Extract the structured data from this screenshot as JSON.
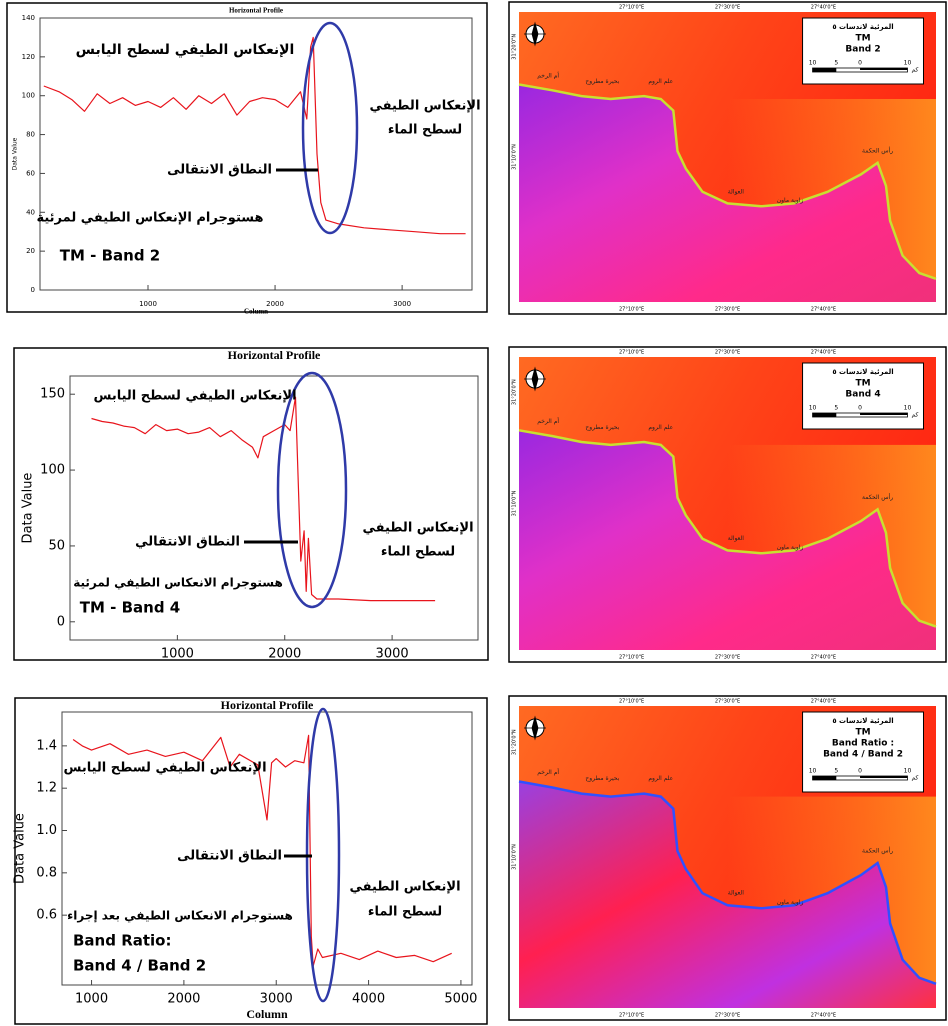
{
  "chart_data": [
    {
      "type": "line",
      "title": "Horizontal Profile",
      "ylabel": "Data Value",
      "xlabel": "Column",
      "color": "#e8141c",
      "xlim": [
        150,
        3550
      ],
      "ylim": [
        0,
        140
      ],
      "xticks": [
        1000,
        2000,
        3000
      ],
      "yticks": [
        0,
        20,
        40,
        60,
        80,
        100,
        120,
        140
      ],
      "x": [
        180,
        300,
        400,
        500,
        600,
        700,
        800,
        900,
        1000,
        1100,
        1200,
        1300,
        1400,
        1500,
        1600,
        1700,
        1800,
        1900,
        2000,
        2100,
        2200,
        2250,
        2280,
        2300,
        2330,
        2360,
        2400,
        2500,
        2700,
        2900,
        3100,
        3300,
        3500
      ],
      "values": [
        105,
        102,
        98,
        92,
        101,
        96,
        99,
        95,
        97,
        94,
        99,
        93,
        100,
        96,
        101,
        90,
        97,
        99,
        98,
        94,
        102,
        88,
        125,
        130,
        70,
        45,
        36,
        34,
        32,
        31,
        30,
        29,
        29
      ],
      "annotations": [
        "الإنعكاس الطيفي لسطح اليابس",
        "الإنعكاس الطيفي",
        "لسطح الماء",
        "النطاق الانتقالى",
        "هستوجرام الإنعكاس الطيفي لمرئية",
        "TM - Band 2"
      ]
    },
    {
      "type": "line",
      "title": "Horizontal Profile",
      "ylabel": "Data Value",
      "color": "#e8141c",
      "xlim": [
        0,
        3800
      ],
      "ylim": [
        -12,
        162
      ],
      "xticks": [
        1000,
        2000,
        3000
      ],
      "yticks": [
        0,
        50,
        100,
        150
      ],
      "x": [
        200,
        300,
        400,
        500,
        600,
        700,
        800,
        900,
        1000,
        1100,
        1200,
        1300,
        1400,
        1500,
        1600,
        1700,
        1750,
        1800,
        1900,
        2000,
        2050,
        2100,
        2150,
        2180,
        2200,
        2220,
        2250,
        2300,
        2500,
        2800,
        3100,
        3400
      ],
      "values": [
        134,
        132,
        131,
        129,
        128,
        124,
        130,
        126,
        127,
        124,
        125,
        128,
        122,
        126,
        120,
        115,
        108,
        122,
        126,
        130,
        126,
        148,
        40,
        60,
        20,
        55,
        18,
        15,
        15,
        14,
        14,
        14
      ],
      "annotations": [
        "الإنعكاس الطيفي لسطح اليابس",
        "النطاق الانتقالي",
        "هستوجرام الانعكاس الطيفي لمرئية",
        "TM - Band 4",
        "الإنعكاس الطيفي",
        "لسطح الماء"
      ]
    },
    {
      "type": "line",
      "title": "Horizontal Profile",
      "ylabel": "Data Value",
      "xlabel": "Column",
      "color": "#e8141c",
      "xlim": [
        680,
        5120
      ],
      "ylim": [
        0.27,
        1.56
      ],
      "xticks": [
        1000,
        2000,
        3000,
        4000,
        5000
      ],
      "yticks": [
        0.6,
        0.8,
        {
          "value": 1,
          "label": "1.0"
        },
        1.2,
        1.4
      ],
      "x": [
        800,
        900,
        1000,
        1200,
        1400,
        1600,
        1800,
        2000,
        2200,
        2400,
        2500,
        2600,
        2800,
        2900,
        2950,
        3000,
        3100,
        3200,
        3300,
        3350,
        3380,
        3400,
        3450,
        3500,
        3700,
        3900,
        4100,
        4300,
        4500,
        4700,
        4900
      ],
      "values": [
        1.43,
        1.4,
        1.38,
        1.41,
        1.36,
        1.38,
        1.35,
        1.37,
        1.33,
        1.44,
        1.3,
        1.36,
        1.31,
        1.05,
        1.32,
        1.34,
        1.3,
        1.33,
        1.32,
        1.45,
        0.5,
        0.36,
        0.44,
        0.4,
        0.42,
        0.39,
        0.43,
        0.4,
        0.41,
        0.38,
        0.42
      ],
      "annotations": [
        "الإنعكاس الطيفي لسطح اليابس",
        "النطاق الانتقالى",
        "الإنعكاس الطيفي",
        "لسطح الماء",
        "هستوجرام الانعكاس الطيفي بعد إجراء",
        "Band Ratio:",
        "Band 4 / Band 2"
      ]
    }
  ],
  "map_common": {
    "places": [
      "أم الرخم",
      "بحيرة مطروح",
      "علم الروم",
      "العوالة",
      "زاوية ماون",
      "رأس الحكمة"
    ],
    "lon": [
      "27°10'0\"E",
      "27°30'0\"E",
      "27°40'0\"E"
    ],
    "lat": [
      "31°20'0\"N",
      "31°10'0\"N"
    ],
    "scale": [
      "10",
      "5",
      "0",
      "10"
    ],
    "scale_unit": "كم"
  },
  "maps": [
    {
      "legend": [
        "المرئية لاندسات ٥",
        "TM",
        "Band 2"
      ]
    },
    {
      "legend": [
        "المرئية لاندسات ٥",
        "TM",
        "Band 4"
      ]
    },
    {
      "legend": [
        "المرئية لاندسات ٥",
        "TM",
        "Band Ratio :",
        "Band 4 / Band 2"
      ]
    }
  ]
}
